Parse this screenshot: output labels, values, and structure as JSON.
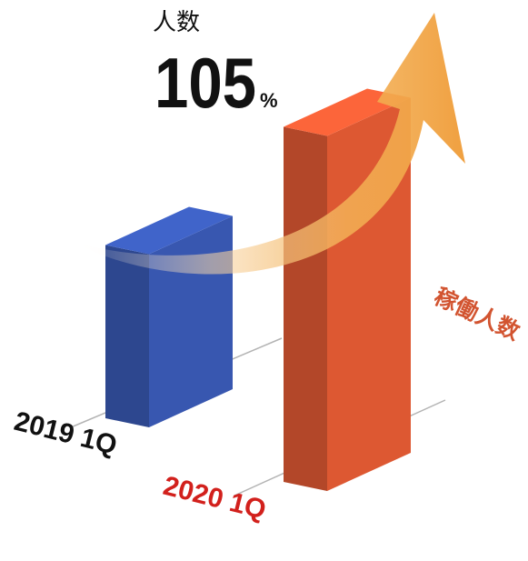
{
  "headline": {
    "label": "人数",
    "value": "105",
    "unit": "%"
  },
  "colors": {
    "bar_2019": "#3553a8",
    "bar_2020": "#d25430",
    "label_2019": "#111111",
    "label_2020": "#d2201c",
    "series_label": "#d25430",
    "arrow": "#f0a040"
  },
  "chart_data": {
    "type": "bar",
    "categories": [
      "2019 1Q",
      "2020 1Q"
    ],
    "series": [
      {
        "name": "稼働人数",
        "values": [
          100,
          205
        ]
      }
    ],
    "title": "人数",
    "annotation": "105%",
    "xlabel": "",
    "ylabel": "",
    "ylim": [
      0,
      210
    ],
    "grid": false,
    "legend": "right"
  }
}
